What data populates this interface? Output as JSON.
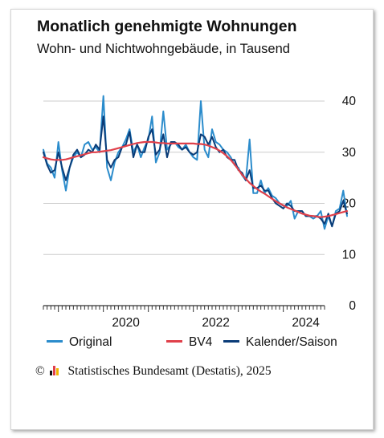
{
  "title": "Monatlich genehmigte Wohnungen",
  "subtitle": "Wohn- und Nichtwohngebäude, in Tausend",
  "source": {
    "copyright_symbol": "©",
    "logo_icon": "destatis-bar-logo-icon",
    "text": "Statistisches Bundesamt (Destatis), 2025"
  },
  "colors": {
    "original": "#2b8ccc",
    "bv4": "#e0404a",
    "saison": "#0a3c78",
    "grid": "#cccccc",
    "axis": "#333333"
  },
  "chart_data": {
    "type": "line",
    "title": "Monatlich genehmigte Wohnungen",
    "subtitle": "Wohn- und Nichtwohngebäude, in Tausend",
    "xlabel": "",
    "ylabel": "",
    "ylim": [
      0,
      40
    ],
    "yticks": [
      0,
      10,
      20,
      30,
      40
    ],
    "y_axis_position": "right",
    "grid": "horizontal",
    "x_start": "2018-09",
    "x_end": "2024-12",
    "xticks": [
      "2020",
      "2022",
      "2024"
    ],
    "legend_position": "bottom",
    "series": [
      {
        "name": "Original",
        "color": "#2b8ccc",
        "values": [
          30.5,
          27.8,
          27.0,
          25.0,
          32.0,
          26.5,
          22.5,
          27.0,
          29.0,
          30.0,
          29.0,
          31.5,
          32.0,
          30.5,
          31.0,
          30.0,
          41.0,
          27.0,
          24.5,
          28.0,
          30.0,
          31.0,
          32.5,
          34.5,
          30.0,
          31.5,
          29.0,
          31.0,
          32.5,
          37.0,
          28.0,
          30.0,
          38.0,
          30.5,
          31.5,
          32.0,
          31.0,
          30.5,
          31.5,
          30.0,
          29.0,
          28.5,
          40.0,
          30.5,
          29.0,
          34.5,
          32.0,
          31.5,
          30.5,
          30.0,
          29.0,
          27.5,
          27.0,
          25.5,
          24.5,
          32.5,
          22.0,
          22.0,
          24.5,
          22.0,
          23.0,
          21.5,
          21.0,
          20.0,
          19.5,
          19.5,
          20.5,
          17.0,
          18.5,
          18.5,
          17.5,
          17.5,
          17.0,
          17.5,
          18.5,
          15.0,
          17.5,
          15.5,
          18.5,
          19.0,
          22.5,
          17.5
        ]
      },
      {
        "name": "BV4",
        "color": "#e0404a",
        "values": [
          29.0,
          28.8,
          28.6,
          28.5,
          28.5,
          28.5,
          28.6,
          28.8,
          29.0,
          29.2,
          29.4,
          29.6,
          29.8,
          30.0,
          30.0,
          30.1,
          30.2,
          30.3,
          30.4,
          30.6,
          30.8,
          31.0,
          31.2,
          31.4,
          31.6,
          31.8,
          31.9,
          32.0,
          32.0,
          32.0,
          31.9,
          31.8,
          31.8,
          31.7,
          31.7,
          31.7,
          31.7,
          31.7,
          31.7,
          31.7,
          31.7,
          31.6,
          31.6,
          31.5,
          31.3,
          31.0,
          30.7,
          30.3,
          29.8,
          29.2,
          28.5,
          27.6,
          26.6,
          25.6,
          24.8,
          24.0,
          23.4,
          22.8,
          22.3,
          21.9,
          21.4,
          20.9,
          20.4,
          20.0,
          19.6,
          19.2,
          18.9,
          18.6,
          18.3,
          18.0,
          17.8,
          17.6,
          17.5,
          17.4,
          17.3,
          17.4,
          17.5,
          17.7,
          17.9,
          18.1,
          18.3,
          18.5
        ]
      },
      {
        "name": "Kalender/Saison",
        "color": "#0a3c78",
        "values": [
          30.0,
          27.5,
          26.0,
          26.5,
          30.0,
          27.0,
          24.5,
          27.0,
          29.5,
          30.5,
          29.0,
          29.5,
          30.5,
          30.0,
          31.5,
          30.5,
          37.0,
          28.5,
          27.0,
          28.5,
          29.0,
          31.0,
          31.5,
          34.0,
          29.0,
          31.5,
          30.0,
          30.0,
          33.0,
          34.5,
          29.5,
          30.5,
          33.5,
          29.0,
          32.0,
          32.0,
          31.5,
          30.5,
          31.0,
          30.0,
          29.5,
          30.0,
          33.5,
          33.0,
          31.5,
          33.0,
          31.0,
          30.0,
          30.5,
          29.0,
          28.5,
          28.5,
          26.5,
          26.0,
          24.5,
          26.5,
          23.0,
          23.0,
          23.5,
          22.5,
          22.5,
          21.0,
          20.0,
          19.5,
          19.0,
          20.0,
          19.5,
          18.5,
          18.5,
          18.5,
          17.5,
          17.5,
          17.5,
          17.5,
          17.0,
          16.0,
          18.0,
          15.5,
          18.0,
          18.5,
          20.5,
          18.0
        ]
      }
    ]
  }
}
